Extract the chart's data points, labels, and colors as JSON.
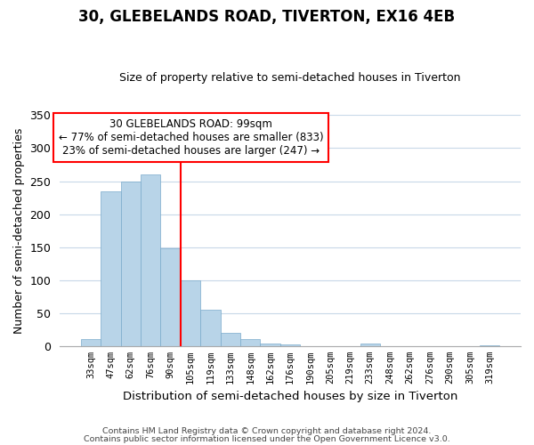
{
  "title": "30, GLEBELANDS ROAD, TIVERTON, EX16 4EB",
  "subtitle": "Size of property relative to semi-detached houses in Tiverton",
  "xlabel": "Distribution of semi-detached houses by size in Tiverton",
  "ylabel": "Number of semi-detached properties",
  "bar_labels": [
    "33sqm",
    "47sqm",
    "62sqm",
    "76sqm",
    "90sqm",
    "105sqm",
    "119sqm",
    "133sqm",
    "148sqm",
    "162sqm",
    "176sqm",
    "190sqm",
    "205sqm",
    "219sqm",
    "233sqm",
    "248sqm",
    "262sqm",
    "276sqm",
    "290sqm",
    "305sqm",
    "319sqm"
  ],
  "bar_values": [
    10,
    235,
    250,
    260,
    148,
    100,
    55,
    20,
    10,
    4,
    2,
    0,
    0,
    0,
    4,
    0,
    0,
    0,
    0,
    0,
    1
  ],
  "bar_color": "#b8d4e8",
  "bar_edge_color": "#7aaacb",
  "property_line_x": 4.5,
  "ylim": [
    0,
    350
  ],
  "yticks": [
    0,
    50,
    100,
    150,
    200,
    250,
    300,
    350
  ],
  "annotation_title": "30 GLEBELANDS ROAD: 99sqm",
  "annotation_line1": "← 77% of semi-detached houses are smaller (833)",
  "annotation_line2": "23% of semi-detached houses are larger (247) →",
  "footer_line1": "Contains HM Land Registry data © Crown copyright and database right 2024.",
  "footer_line2": "Contains public sector information licensed under the Open Government Licence v3.0.",
  "background_color": "#ffffff",
  "grid_color": "#c8d8e8"
}
